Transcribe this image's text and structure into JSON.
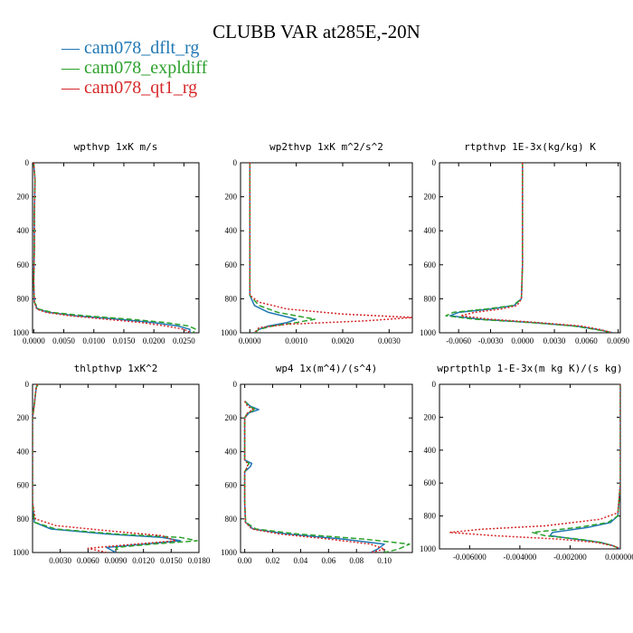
{
  "figure": {
    "title": "CLUBB VAR at285E,-20N",
    "legend": [
      {
        "name": "cam078_dflt_rg",
        "color": "#1f77b4",
        "dash": "solid"
      },
      {
        "name": "cam078_expldiff",
        "color": "#2ca02c",
        "dash": "dashed"
      },
      {
        "name": "cam078_qt1_rg",
        "color": "#d62728",
        "dash": "dotted"
      }
    ]
  },
  "chart_data": [
    {
      "type": "line",
      "title": "wpthvp   1xK m/s",
      "xlim": [
        -0.0002,
        0.0275
      ],
      "ylim": [
        1000,
        0
      ],
      "xticks": [
        0.0,
        0.005,
        0.01,
        0.015,
        0.02,
        0.025
      ],
      "xtick_labels": [
        "0.0000",
        "0.0050",
        "0.0100",
        "0.0150",
        "0.0200",
        "0.0250"
      ],
      "yticks": [
        0,
        200,
        400,
        600,
        800,
        1000
      ],
      "ytick_labels": [
        "0",
        "200",
        "400",
        "600",
        "800",
        "1000"
      ],
      "series": [
        {
          "y": [
            0,
            100,
            300,
            500,
            700,
            820,
            860,
            880,
            900,
            920,
            940,
            960,
            980,
            1000
          ],
          "x": [
            0.0,
            0.0002,
            0.0001,
            0.0001,
            0.0,
            0.0001,
            0.0006,
            0.0025,
            0.007,
            0.014,
            0.02,
            0.024,
            0.026,
            0.026
          ]
        },
        {
          "y": [
            0,
            100,
            300,
            500,
            700,
            820,
            860,
            880,
            900,
            920,
            940,
            960,
            980,
            1000
          ],
          "x": [
            0.0,
            0.0002,
            0.0001,
            0.0001,
            0.0,
            0.0001,
            0.0008,
            0.003,
            0.0085,
            0.016,
            0.022,
            0.0258,
            0.027,
            0.0265
          ]
        },
        {
          "y": [
            0,
            100,
            300,
            500,
            700,
            820,
            860,
            880,
            900,
            920,
            940,
            960,
            980,
            1000
          ],
          "x": [
            0.0,
            0.0002,
            0.0001,
            0.0001,
            0.0,
            0.0001,
            0.0005,
            0.002,
            0.006,
            0.012,
            0.018,
            0.022,
            0.025,
            0.0262
          ]
        }
      ]
    },
    {
      "type": "line",
      "title": "wp2thvp   1xK m^2/s^2",
      "xlim": [
        -0.0002,
        0.0035
      ],
      "ylim": [
        1000,
        0
      ],
      "xticks": [
        0.0,
        0.001,
        0.002,
        0.003
      ],
      "xtick_labels": [
        "0.0000",
        "0.0010",
        "0.0020",
        "0.0030"
      ],
      "yticks": [
        0,
        200,
        400,
        600,
        800,
        1000
      ],
      "ytick_labels": [
        "0",
        "200",
        "400",
        "600",
        "800",
        "1000"
      ],
      "series": [
        {
          "y": [
            0,
            200,
            400,
            600,
            780,
            840,
            880,
            920,
            940,
            960,
            980,
            1000
          ],
          "x": [
            0.0,
            0.0,
            0.0,
            0.0,
            0.0,
            0.0001,
            0.0004,
            0.001,
            0.0008,
            0.0004,
            0.0002,
            0.0001
          ]
        },
        {
          "y": [
            0,
            200,
            400,
            600,
            780,
            840,
            880,
            920,
            940,
            960,
            980,
            1000
          ],
          "x": [
            0.0,
            0.0,
            0.0,
            0.0,
            0.0,
            0.0002,
            0.0006,
            0.0014,
            0.001,
            0.0005,
            0.0002,
            0.0001
          ]
        },
        {
          "y": [
            0,
            200,
            400,
            600,
            780,
            820,
            860,
            890,
            910,
            930,
            950,
            970,
            1000
          ],
          "x": [
            0.0,
            0.0,
            0.0,
            0.0,
            0.0,
            0.0002,
            0.0008,
            0.002,
            0.0035,
            0.0025,
            0.0008,
            0.0002,
            0.0001
          ]
        }
      ]
    },
    {
      "type": "line",
      "title": "rtpthvp   1E-3x(kg/kg) K",
      "xlim": [
        -0.0078,
        0.0092
      ],
      "ylim": [
        1000,
        0
      ],
      "xticks": [
        -0.006,
        -0.003,
        0.0,
        0.003,
        0.006,
        0.009
      ],
      "xtick_labels": [
        "-0.0060",
        "-0.0030",
        "0.0000",
        "0.0030",
        "0.0060",
        "0.0090"
      ],
      "yticks": [
        0,
        200,
        400,
        600,
        800,
        1000
      ],
      "ytick_labels": [
        "0",
        "200",
        "400",
        "600",
        "800",
        "1000"
      ],
      "series": [
        {
          "y": [
            0,
            200,
            400,
            600,
            800,
            840,
            860,
            880,
            900,
            920,
            940,
            960,
            980,
            1000
          ],
          "x": [
            0.0,
            0.0,
            0.0,
            0.0,
            -0.0001,
            -0.0008,
            -0.003,
            -0.006,
            -0.0068,
            -0.004,
            0.001,
            0.005,
            0.007,
            0.0085
          ]
        },
        {
          "y": [
            0,
            200,
            400,
            600,
            800,
            840,
            860,
            880,
            900,
            920,
            940,
            960,
            980,
            1000
          ],
          "x": [
            0.0,
            0.0,
            0.0,
            0.0,
            -0.0001,
            -0.0009,
            -0.0034,
            -0.0065,
            -0.0072,
            -0.0045,
            0.0008,
            0.0048,
            0.0068,
            0.0085
          ]
        },
        {
          "y": [
            0,
            200,
            400,
            600,
            800,
            840,
            860,
            880,
            900,
            920,
            940,
            960,
            980,
            1000
          ],
          "x": [
            0.0,
            0.0,
            0.0,
            0.0,
            -0.0001,
            -0.0005,
            -0.002,
            -0.0045,
            -0.0058,
            -0.003,
            0.0015,
            0.0055,
            0.0072,
            0.0085
          ]
        }
      ]
    },
    {
      "type": "line",
      "title": "thlpthvp   1xK^2",
      "xlim": [
        0.0,
        0.018
      ],
      "ylim": [
        1000,
        0
      ],
      "xticks": [
        0.003,
        0.006,
        0.009,
        0.012,
        0.015,
        0.018
      ],
      "xtick_labels": [
        "0.0030",
        "0.0060",
        "0.0090",
        "0.0120",
        "0.0150",
        "0.0180"
      ],
      "yticks": [
        0,
        200,
        400,
        600,
        800,
        1000
      ],
      "ytick_labels": [
        "0",
        "200",
        "400",
        "600",
        "800",
        "1000"
      ],
      "series": [
        {
          "y": [
            0,
            20,
            60,
            120,
            200,
            400,
            700,
            820,
            860,
            890,
            910,
            930,
            950,
            970,
            1000
          ],
          "x": [
            0.0005,
            0.0004,
            0.0003,
            0.0002,
            0.0,
            0.0,
            0.0,
            0.0002,
            0.002,
            0.008,
            0.014,
            0.016,
            0.012,
            0.008,
            0.009
          ]
        },
        {
          "y": [
            0,
            20,
            60,
            120,
            200,
            400,
            700,
            820,
            860,
            890,
            910,
            930,
            950,
            970,
            1000
          ],
          "x": [
            0.0006,
            0.0004,
            0.0003,
            0.0002,
            0.0,
            0.0,
            0.0,
            0.0002,
            0.0025,
            0.009,
            0.016,
            0.0178,
            0.013,
            0.009,
            0.0095
          ]
        },
        {
          "y": [
            0,
            20,
            60,
            120,
            200,
            400,
            700,
            800,
            840,
            870,
            900,
            930,
            960,
            975,
            1000
          ],
          "x": [
            0.0005,
            0.0004,
            0.0003,
            0.0002,
            0.0,
            0.0,
            0.0,
            0.0003,
            0.0025,
            0.008,
            0.014,
            0.0155,
            0.009,
            0.006,
            0.008
          ]
        }
      ]
    },
    {
      "type": "line",
      "title": "wp4   1x(m^4)/(s^4)",
      "xlim": [
        -0.003,
        0.12
      ],
      "ylim": [
        1000,
        0
      ],
      "xticks": [
        0.0,
        0.02,
        0.04,
        0.06,
        0.08,
        0.1
      ],
      "xtick_labels": [
        "0.00",
        "0.02",
        "0.04",
        "0.06",
        "0.08",
        "0.10"
      ],
      "yticks": [
        0,
        200,
        400,
        600,
        800,
        1000
      ],
      "ytick_labels": [
        "0",
        "200",
        "400",
        "600",
        "800",
        "1000"
      ],
      "series": [
        {
          "y": [
            100,
            130,
            150,
            170,
            200,
            300,
            450,
            470,
            490,
            520,
            700,
            820,
            860,
            890,
            920,
            950,
            980,
            1000
          ],
          "x": [
            0.0,
            0.004,
            0.01,
            0.003,
            0.0,
            0.0,
            0.0,
            0.005,
            0.004,
            0.0,
            0.0,
            0.0005,
            0.006,
            0.03,
            0.07,
            0.1,
            0.095,
            0.09
          ]
        },
        {
          "y": [
            100,
            130,
            150,
            170,
            200,
            300,
            450,
            470,
            490,
            520,
            700,
            820,
            860,
            890,
            920,
            950,
            980,
            1000
          ],
          "x": [
            0.0,
            0.003,
            0.008,
            0.002,
            0.0,
            0.0,
            0.0,
            0.003,
            0.002,
            0.0,
            0.0,
            0.0007,
            0.008,
            0.038,
            0.085,
            0.118,
            0.11,
            0.1
          ]
        },
        {
          "y": [
            100,
            130,
            150,
            170,
            200,
            300,
            450,
            470,
            490,
            520,
            700,
            820,
            860,
            890,
            920,
            950,
            980,
            1000
          ],
          "x": [
            0.0,
            0.002,
            0.006,
            0.002,
            0.0,
            0.0,
            0.0,
            0.002,
            0.002,
            0.0,
            0.0,
            0.0004,
            0.005,
            0.025,
            0.06,
            0.09,
            0.1,
            0.09
          ]
        }
      ]
    },
    {
      "type": "line",
      "title": "wprtpthlp   1-E-3x(m kg K)/(s kg)",
      "xlim": [
        -0.0072,
        0.0
      ],
      "ylim": [
        1000,
        0
      ],
      "xticks": [
        -0.006,
        -0.004,
        -0.002,
        0.0
      ],
      "xtick_labels": [
        "-0.006000",
        "-0.004000",
        "-0.002000",
        "0.000000"
      ],
      "yticks": [
        0,
        200,
        400,
        600,
        800,
        1000
      ],
      "ytick_labels": [
        "0",
        "200",
        "400",
        "600",
        "800",
        "1000"
      ],
      "series": [
        {
          "y": [
            0,
            200,
            400,
            600,
            800,
            840,
            870,
            900,
            920,
            940,
            960,
            980,
            1000
          ],
          "x": [
            0.0,
            0.0,
            0.0,
            0.0,
            -0.0001,
            -0.0004,
            -0.0013,
            -0.0027,
            -0.0028,
            -0.0018,
            -0.0008,
            -0.0003,
            0.0
          ]
        },
        {
          "y": [
            0,
            200,
            400,
            600,
            800,
            840,
            870,
            900,
            920,
            940,
            960,
            980,
            1000
          ],
          "x": [
            0.0,
            0.0,
            0.0,
            0.0,
            -0.0001,
            -0.0005,
            -0.0017,
            -0.0035,
            -0.003,
            -0.0017,
            -0.0008,
            -0.0003,
            0.0
          ]
        },
        {
          "y": [
            0,
            200,
            400,
            600,
            780,
            820,
            860,
            880,
            900,
            920,
            940,
            960,
            980,
            1000
          ],
          "x": [
            0.0,
            0.0,
            0.0,
            0.0,
            -0.0001,
            -0.0008,
            -0.003,
            -0.0055,
            -0.0068,
            -0.005,
            -0.0025,
            -0.001,
            -0.0003,
            0.0
          ]
        }
      ]
    }
  ]
}
